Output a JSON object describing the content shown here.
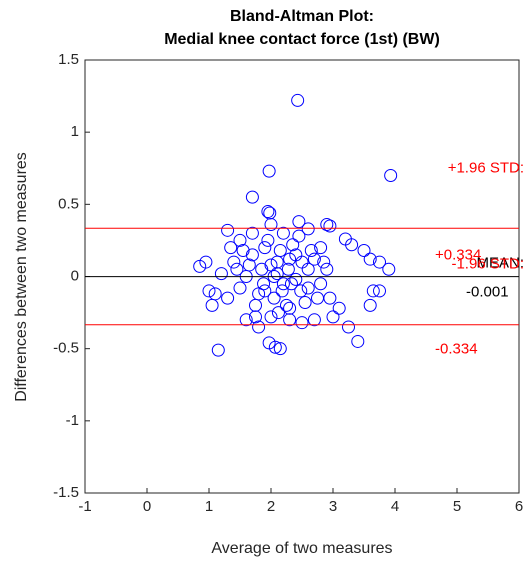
{
  "chart_data": {
    "type": "scatter",
    "title": [
      "Bland-Altman Plot:",
      "Medial knee contact force (1st) (BW)"
    ],
    "x_label": "Average of two measures",
    "y_label": "Differences between two measures",
    "xlim": [
      -1,
      6
    ],
    "xticks": [
      -1,
      0,
      1,
      2,
      3,
      4,
      5,
      6
    ],
    "ylim": [
      -1.5,
      1.5
    ],
    "yticks": [
      -1.5,
      -1,
      -0.5,
      0,
      0.5,
      1,
      1.5
    ],
    "series": [
      {
        "color": "#0000ff",
        "x": [
          2.43,
          1.97,
          3.93,
          1.7,
          1.95,
          1.98,
          2.0,
          2.45,
          2.6,
          2.9,
          2.95,
          3.2,
          3.3,
          3.5,
          3.6,
          3.75,
          3.9,
          3.65,
          3.75,
          3.25,
          3.4,
          3.6,
          1.15,
          1.97,
          2.07,
          2.15,
          0.85,
          0.95,
          1.0,
          1.05,
          1.3,
          1.5,
          1.6,
          1.7,
          3.0,
          3.1,
          2.8,
          2.7,
          2.5,
          2.3,
          1.8,
          1.75,
          2.1,
          2.2,
          2.0,
          1.9,
          2.3,
          2.4,
          2.15,
          2.05,
          1.85,
          2.25,
          2.35,
          2.5,
          1.8,
          1.7,
          2.6,
          2.45,
          2.55,
          1.95,
          2.12,
          2.28,
          1.6,
          1.5,
          2.7,
          2.8,
          1.4,
          1.3,
          2.65,
          2.9,
          1.2,
          1.1,
          2.2,
          2.0,
          1.9,
          2.3,
          2.1,
          2.4,
          1.75,
          2.6,
          1.65,
          2.75,
          2.05,
          2.18,
          2.33,
          1.88,
          2.48,
          1.55,
          2.85,
          1.45,
          2.95,
          1.35
        ],
        "values": [
          1.22,
          0.73,
          0.7,
          0.55,
          0.45,
          0.44,
          0.36,
          0.38,
          0.33,
          0.36,
          0.35,
          0.26,
          0.22,
          0.18,
          0.12,
          0.1,
          0.05,
          -0.1,
          -0.1,
          -0.35,
          -0.45,
          -0.2,
          -0.51,
          -0.46,
          -0.49,
          -0.5,
          0.07,
          0.1,
          -0.1,
          -0.2,
          0.32,
          0.25,
          -0.3,
          0.3,
          -0.28,
          -0.22,
          0.2,
          -0.3,
          -0.32,
          -0.3,
          -0.35,
          -0.28,
          0.02,
          -0.05,
          0.08,
          -0.1,
          0.12,
          -0.02,
          0.18,
          -0.15,
          0.05,
          -0.2,
          0.22,
          0.1,
          -0.12,
          0.15,
          -0.08,
          0.28,
          -0.18,
          0.25,
          -0.25,
          0.05,
          0.0,
          -0.08,
          0.12,
          -0.05,
          0.1,
          -0.15,
          0.18,
          0.05,
          0.02,
          -0.12,
          0.3,
          -0.28,
          0.2,
          -0.22,
          0.1,
          0.15,
          -0.2,
          0.05,
          0.08,
          -0.15,
          0.0,
          -0.1,
          -0.05,
          -0.05,
          -0.1,
          0.18,
          0.1,
          0.05,
          -0.15,
          0.2
        ]
      }
    ],
    "reference_lines": [
      {
        "name": "+1.96 STD:",
        "value": 0.334,
        "label": "+0.334",
        "color": "#ff0000"
      },
      {
        "name": "MEAN:",
        "value": -0.001,
        "label": "-0.001",
        "color": "#000000"
      },
      {
        "name": "-1.96 STD:",
        "value": -0.334,
        "label": "-0.334",
        "color": "#ff0000"
      }
    ]
  }
}
